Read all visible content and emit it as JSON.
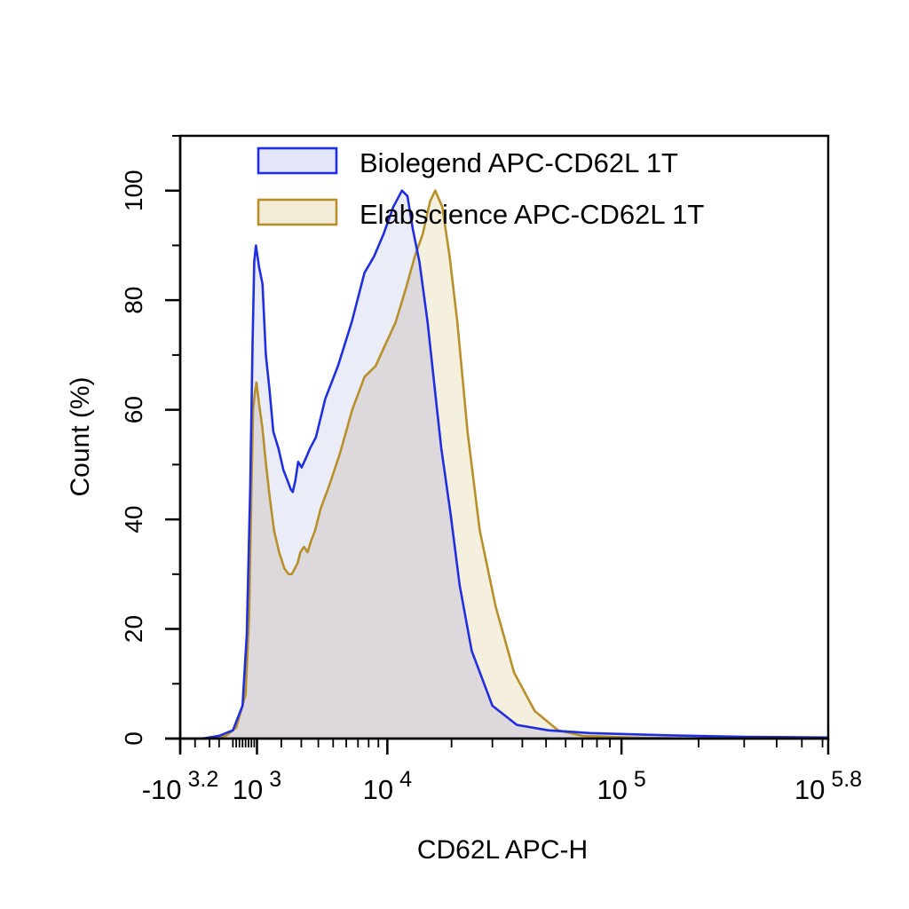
{
  "chart_data": {
    "type": "area",
    "title": "",
    "xlabel": "CD62L APC-H",
    "ylabel": "Count  (%)",
    "x_scale": "biexponential-log",
    "xlim": [
      -1585,
      631000
    ],
    "ylim": [
      0,
      110
    ],
    "y_ticks": [
      0,
      20,
      40,
      60,
      80,
      100
    ],
    "x_ticks": [
      {
        "value": -1585,
        "base": "-10",
        "exp": "3.2"
      },
      {
        "value": 1000,
        "base": "10",
        "exp": "3"
      },
      {
        "value": 10000,
        "base": "10",
        "exp": "4"
      },
      {
        "value": 100000,
        "base": "10",
        "exp": "5"
      },
      {
        "value": 631000,
        "base": "10",
        "exp": "5.8"
      }
    ],
    "legend_position": "top",
    "grid": false,
    "series": [
      {
        "name": "Biolegend APC-CD62L  1T",
        "stroke": "#1f2ee0",
        "fill": "#e3e6f6",
        "x": [
          -1585,
          -750,
          -200,
          200,
          500,
          640,
          760,
          840,
          900,
          960,
          1080,
          1210,
          1340,
          1480,
          1650,
          1870,
          2100,
          2300,
          2450,
          2550,
          2680,
          2830,
          3020,
          3230,
          3500,
          3850,
          4450,
          5350,
          6450,
          7600,
          8550,
          9550,
          10700,
          11800,
          12550,
          13300,
          14300,
          15600,
          16700,
          18000,
          19800,
          21700,
          24500,
          30000,
          38000,
          51000,
          75000,
          150000,
          300000,
          631000
        ],
        "y": [
          0,
          0,
          0.5,
          1.5,
          6,
          19,
          46,
          72,
          87,
          90,
          86,
          83,
          70,
          64,
          56,
          53,
          49,
          47,
          45.5,
          45,
          47,
          50.5,
          49.5,
          51,
          53,
          55,
          62,
          68,
          76,
          85,
          88,
          92,
          97,
          100,
          99,
          93,
          87,
          76,
          65,
          53,
          41,
          28,
          16,
          6,
          2.5,
          1.5,
          1,
          0.6,
          0.3,
          0.2
        ]
      },
      {
        "name": "Elabscience APC-CD62L 1T",
        "stroke": "#b8902a",
        "fill": "#f3ecd8",
        "x": [
          -1585,
          -500,
          0,
          300,
          600,
          720,
          800,
          860,
          920,
          980,
          1080,
          1200,
          1350,
          1500,
          1680,
          1900,
          2150,
          2350,
          2500,
          2650,
          2800,
          2950,
          3150,
          3350,
          3550,
          3800,
          4150,
          4700,
          5500,
          6500,
          7600,
          8700,
          9800,
          11000,
          12300,
          13600,
          14800,
          16000,
          16900,
          18200,
          19600,
          21200,
          23500,
          26500,
          31000,
          37000,
          45000,
          56000,
          70000,
          110000,
          200000,
          631000
        ],
        "y": [
          0,
          0,
          0.5,
          2,
          8,
          22,
          45,
          60,
          63,
          65,
          61,
          57,
          50,
          44,
          38,
          34,
          31,
          30,
          30,
          31,
          32,
          34,
          35,
          34,
          36,
          38,
          42,
          46,
          52,
          60,
          66,
          68,
          72,
          76,
          82,
          88,
          92,
          98,
          100,
          97,
          88,
          76,
          56,
          38,
          24,
          12,
          5,
          1.5,
          0.5,
          0.2,
          0,
          0
        ]
      }
    ]
  }
}
